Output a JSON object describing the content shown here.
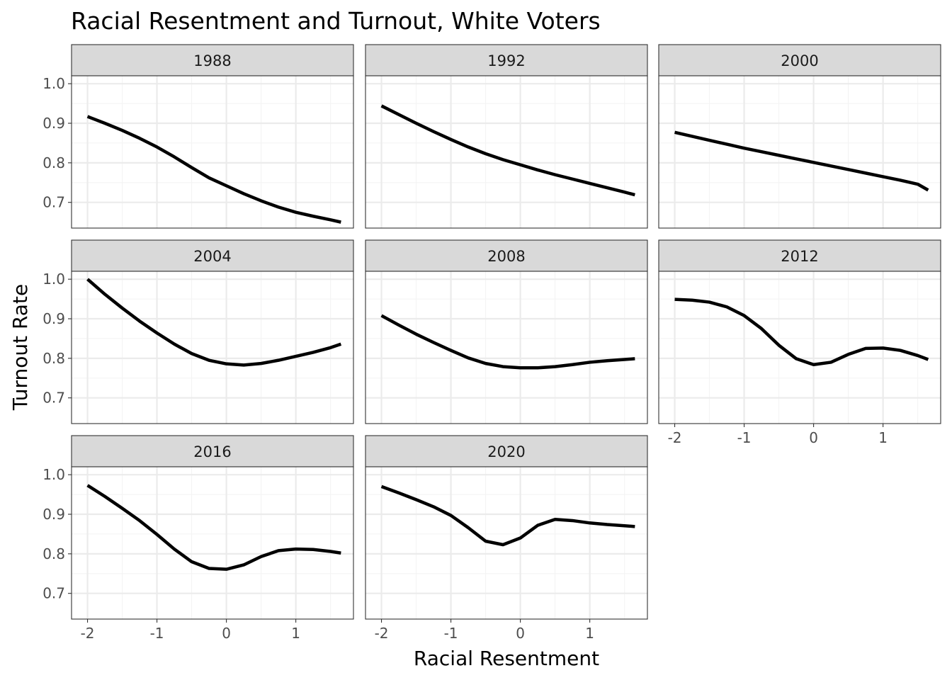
{
  "chart_data": {
    "type": "line",
    "title": "Racial Resentment and Turnout, White Voters",
    "xlabel": "Racial Resentment",
    "ylabel": "Turnout Rate",
    "xlim": [
      -2.23,
      1.83
    ],
    "ylim": [
      0.635,
      1.02
    ],
    "x_ticks": [
      -2,
      -1,
      0,
      1
    ],
    "x_tick_labels": [
      "-2",
      "-1",
      "0",
      "1"
    ],
    "y_ticks": [
      0.7,
      0.8,
      0.9,
      1.0
    ],
    "y_tick_labels": [
      "0.7",
      "0.8",
      "0.9",
      "1.0"
    ],
    "grid": true,
    "facet_columns": 3,
    "x": [
      -2.0,
      -1.75,
      -1.5,
      -1.25,
      -1.0,
      -0.75,
      -0.5,
      -0.25,
      0.0,
      0.25,
      0.5,
      0.75,
      1.0,
      1.25,
      1.5,
      1.65
    ],
    "panels": [
      {
        "label": "1988",
        "values": [
          0.917,
          0.9,
          0.882,
          0.862,
          0.84,
          0.815,
          0.788,
          0.762,
          0.742,
          0.722,
          0.704,
          0.688,
          0.675,
          0.665,
          0.656,
          0.65
        ]
      },
      {
        "label": "1992",
        "values": [
          0.944,
          0.922,
          0.9,
          0.879,
          0.859,
          0.84,
          0.823,
          0.808,
          0.795,
          0.782,
          0.77,
          0.759,
          0.748,
          0.737,
          0.726,
          0.719
        ]
      },
      {
        "label": "2000",
        "values": [
          0.877,
          0.867,
          0.857,
          0.847,
          0.837,
          0.828,
          0.819,
          0.81,
          0.801,
          0.792,
          0.783,
          0.774,
          0.765,
          0.756,
          0.746,
          0.731
        ]
      },
      {
        "label": "2004",
        "values": [
          1.0,
          0.962,
          0.927,
          0.894,
          0.864,
          0.836,
          0.812,
          0.795,
          0.786,
          0.783,
          0.787,
          0.795,
          0.805,
          0.815,
          0.827,
          0.836
        ]
      },
      {
        "label": "2008",
        "values": [
          0.908,
          0.884,
          0.861,
          0.84,
          0.82,
          0.801,
          0.787,
          0.779,
          0.776,
          0.776,
          0.779,
          0.784,
          0.79,
          0.794,
          0.797,
          0.799
        ]
      },
      {
        "label": "2012",
        "values": [
          0.949,
          0.947,
          0.942,
          0.93,
          0.908,
          0.875,
          0.833,
          0.799,
          0.784,
          0.79,
          0.81,
          0.825,
          0.826,
          0.82,
          0.807,
          0.797
        ]
      },
      {
        "label": "2016",
        "values": [
          0.973,
          0.945,
          0.915,
          0.884,
          0.849,
          0.812,
          0.78,
          0.763,
          0.761,
          0.772,
          0.793,
          0.808,
          0.812,
          0.811,
          0.806,
          0.802
        ]
      },
      {
        "label": "2020",
        "values": [
          0.97,
          0.954,
          0.937,
          0.919,
          0.897,
          0.866,
          0.832,
          0.823,
          0.84,
          0.872,
          0.887,
          0.884,
          0.878,
          0.874,
          0.871,
          0.869
        ]
      }
    ]
  }
}
